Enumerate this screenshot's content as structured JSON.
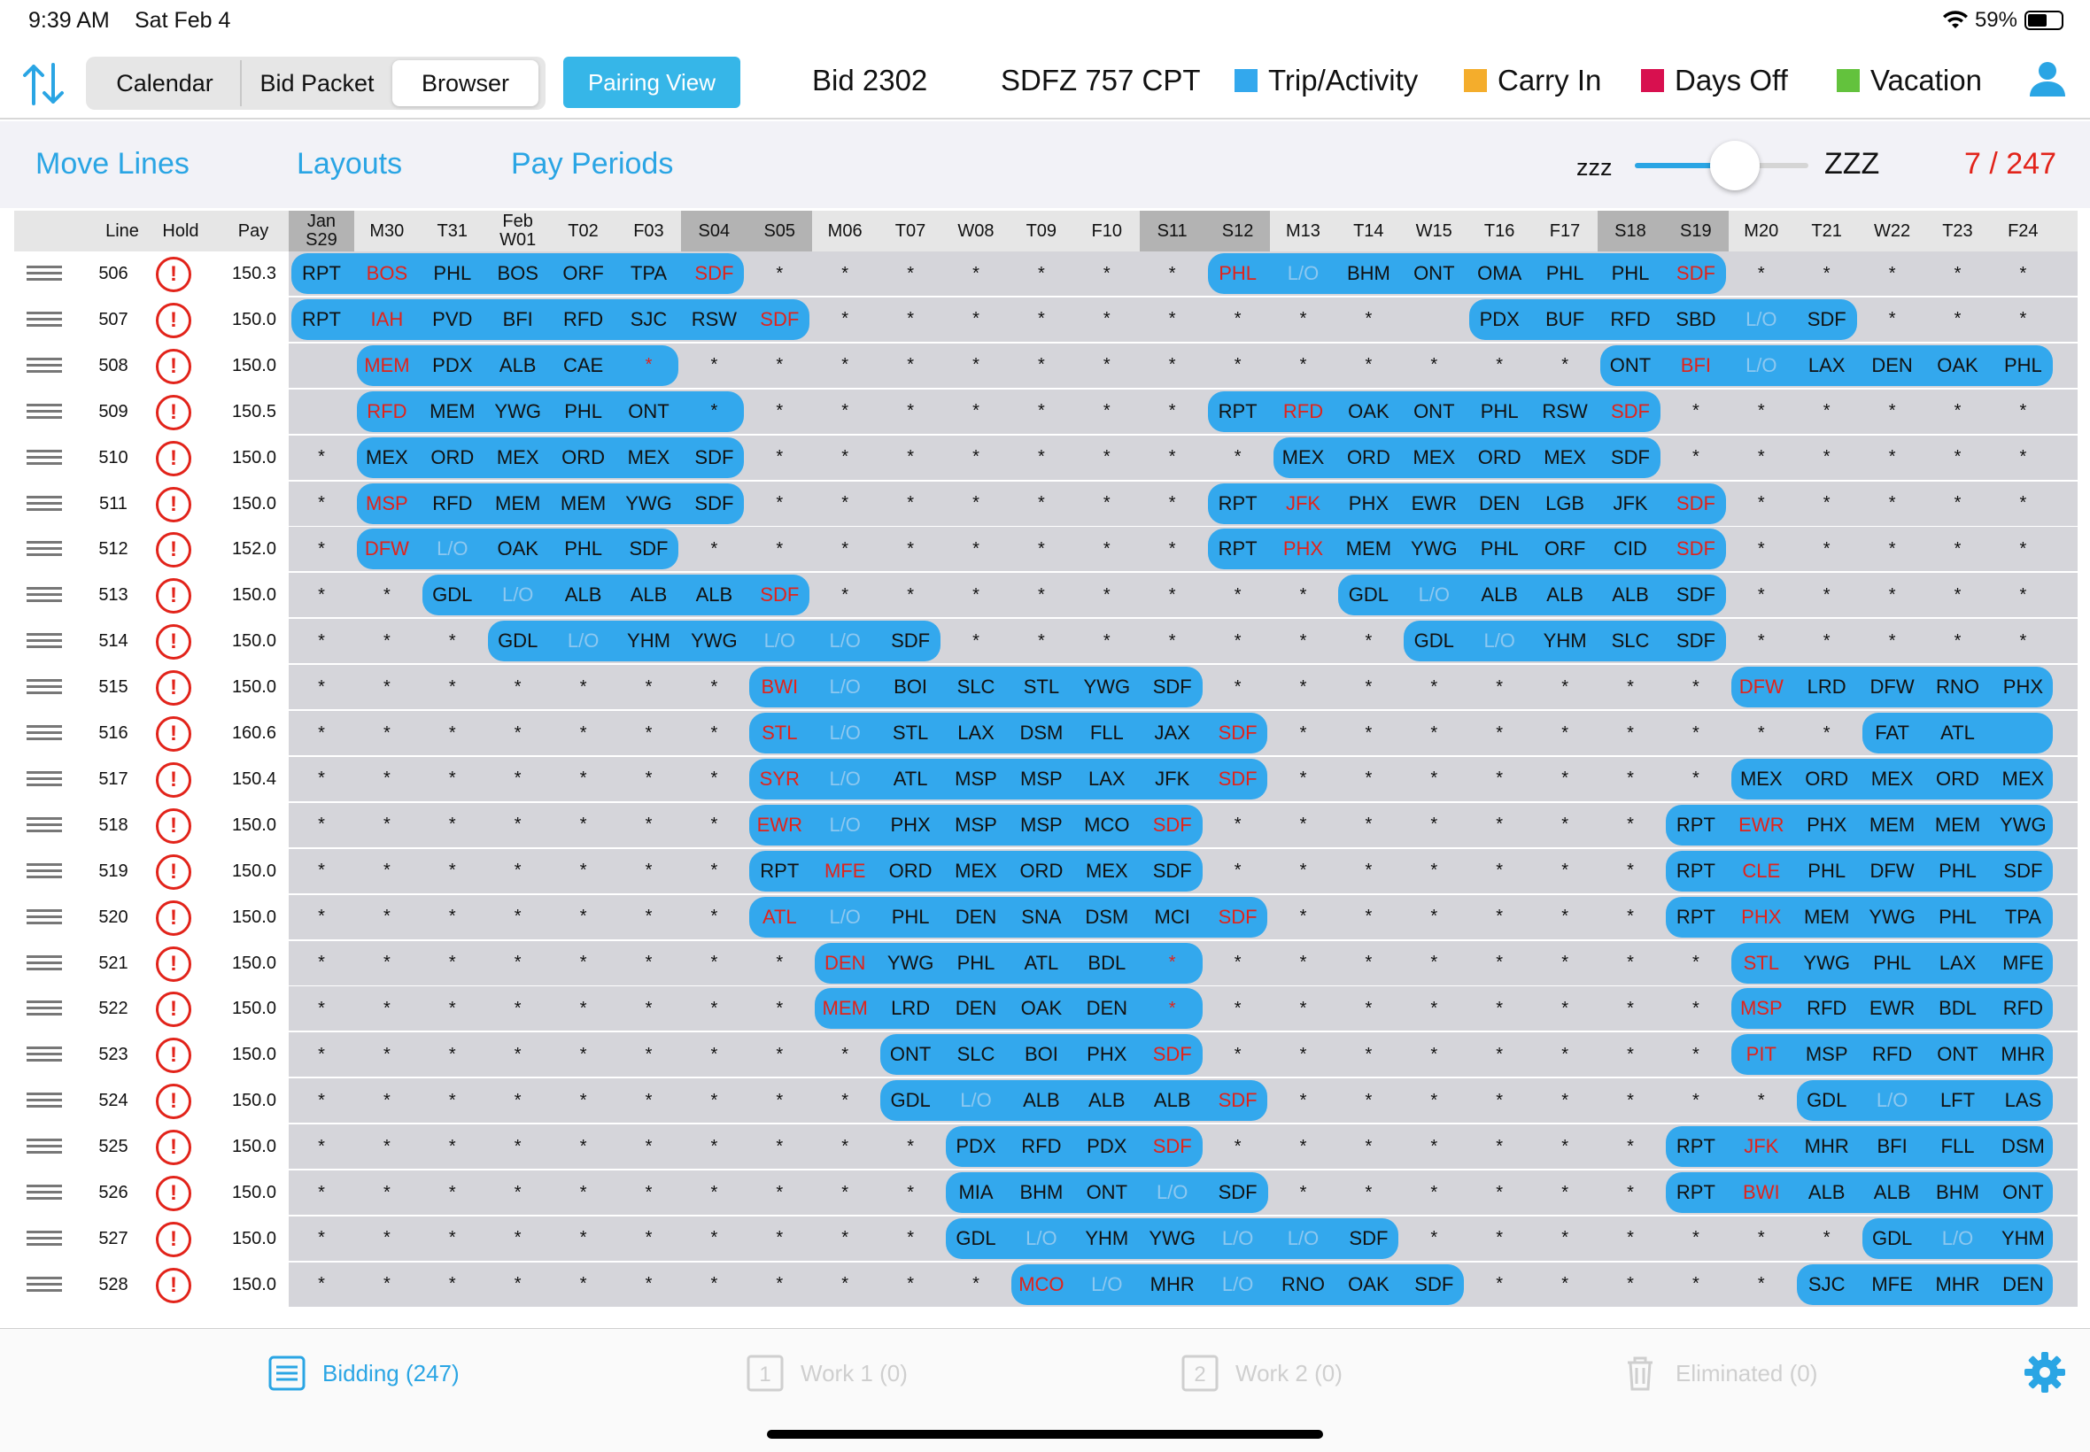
{
  "status_bar": {
    "time": "9:39 AM",
    "date": "Sat Feb 4",
    "battery": "59%",
    "battery_level": 0.59
  },
  "segments": [
    "Calendar",
    "Bid Packet",
    "Browser"
  ],
  "selected_segment": "Browser",
  "pairing_view_label": "Pairing View",
  "bid_label": "Bid 2302",
  "crew_label": "SDFZ 757 CPT",
  "legend": [
    {
      "label": "Trip/Activity",
      "color": "#33a8ed"
    },
    {
      "label": "Carry In",
      "color": "#f4ad2c"
    },
    {
      "label": "Days Off",
      "color": "#d8104f"
    },
    {
      "label": "Vacation",
      "color": "#63c23d"
    }
  ],
  "toolbar": {
    "move_lines": "Move Lines",
    "layouts": "Layouts",
    "pay_periods": "Pay Periods",
    "zzz_small": "zzz",
    "zzz_large": "ZZZ",
    "slider_value": 0.56,
    "count": "7 / 247"
  },
  "columns": {
    "line": "Line",
    "hold": "Hold",
    "pay": "Pay"
  },
  "days": [
    {
      "top": "Jan",
      "bot": "S29",
      "weekend": true
    },
    {
      "top": "",
      "bot": "M30",
      "weekend": false
    },
    {
      "top": "",
      "bot": "T31",
      "weekend": false
    },
    {
      "top": "Feb",
      "bot": "W01",
      "weekend": false
    },
    {
      "top": "",
      "bot": "T02",
      "weekend": false
    },
    {
      "top": "",
      "bot": "F03",
      "weekend": false
    },
    {
      "top": "",
      "bot": "S04",
      "weekend": true
    },
    {
      "top": "",
      "bot": "S05",
      "weekend": true
    },
    {
      "top": "",
      "bot": "M06",
      "weekend": false
    },
    {
      "top": "",
      "bot": "T07",
      "weekend": false
    },
    {
      "top": "",
      "bot": "W08",
      "weekend": false
    },
    {
      "top": "",
      "bot": "T09",
      "weekend": false
    },
    {
      "top": "",
      "bot": "F10",
      "weekend": false
    },
    {
      "top": "",
      "bot": "S11",
      "weekend": true
    },
    {
      "top": "",
      "bot": "S12",
      "weekend": true
    },
    {
      "top": "",
      "bot": "M13",
      "weekend": false
    },
    {
      "top": "",
      "bot": "T14",
      "weekend": false
    },
    {
      "top": "",
      "bot": "W15",
      "weekend": false
    },
    {
      "top": "",
      "bot": "T16",
      "weekend": false
    },
    {
      "top": "",
      "bot": "F17",
      "weekend": false
    },
    {
      "top": "",
      "bot": "S18",
      "weekend": true
    },
    {
      "top": "",
      "bot": "S19",
      "weekend": true
    },
    {
      "top": "",
      "bot": "M20",
      "weekend": false
    },
    {
      "top": "",
      "bot": "T21",
      "weekend": false
    },
    {
      "top": "",
      "bot": "W22",
      "weekend": false
    },
    {
      "top": "",
      "bot": "T23",
      "weekend": false
    },
    {
      "top": "",
      "bot": "F24",
      "weekend": false
    }
  ],
  "lines": [
    {
      "line": "506",
      "pay": "150.3",
      "cells": [
        "RPT",
        "!BOS",
        "PHL",
        "BOS",
        "ORF",
        "TPA",
        "!SDF",
        "*",
        "*",
        "*",
        "*",
        "*",
        "*",
        "*",
        "!PHL",
        "~L/O",
        "BHM",
        "ONT",
        "OMA",
        "PHL",
        "PHL",
        "!SDF",
        "*",
        "*",
        "*",
        "*",
        "*"
      ],
      "trips": [
        [
          0,
          6
        ],
        [
          14,
          21
        ]
      ]
    },
    {
      "line": "507",
      "pay": "150.0",
      "cells": [
        "RPT",
        "!IAH",
        "PVD",
        "BFI",
        "RFD",
        "SJC",
        "RSW",
        "!SDF",
        "*",
        "*",
        "*",
        "*",
        "*",
        "*",
        "*",
        "*",
        "*",
        "",
        "PDX",
        "BUF",
        "RFD",
        "SBD",
        "~L/O",
        "SDF",
        "*",
        "*",
        "*"
      ],
      "trips": [
        [
          0,
          7
        ],
        [
          18,
          23
        ]
      ]
    },
    {
      "line": "508",
      "pay": "150.0",
      "cells": [
        "",
        "!MEM",
        "PDX",
        "ALB",
        "CAE",
        "!*",
        "*",
        "*",
        "*",
        "*",
        "*",
        "*",
        "*",
        "*",
        "*",
        "*",
        "*",
        "*",
        "*",
        "*",
        "ONT",
        "!BFI",
        "~L/O",
        "LAX",
        "DEN",
        "OAK",
        "PHL"
      ],
      "trips": [
        [
          1,
          5
        ],
        [
          20,
          26
        ]
      ]
    },
    {
      "line": "509",
      "pay": "150.5",
      "cells": [
        "",
        "!RFD",
        "MEM",
        "YWG",
        "PHL",
        "ONT",
        "*",
        "*",
        "*",
        "*",
        "*",
        "*",
        "*",
        "*",
        "RPT",
        "!RFD",
        "OAK",
        "ONT",
        "PHL",
        "RSW",
        "!SDF",
        "*",
        "*",
        "*",
        "*",
        "*",
        "*"
      ],
      "trips": [
        [
          1,
          6
        ],
        [
          14,
          20
        ]
      ]
    },
    {
      "line": "510",
      "pay": "150.0",
      "cells": [
        "*",
        "MEX",
        "ORD",
        "MEX",
        "ORD",
        "MEX",
        "SDF",
        "*",
        "*",
        "*",
        "*",
        "*",
        "*",
        "*",
        "*",
        "MEX",
        "ORD",
        "MEX",
        "ORD",
        "MEX",
        "SDF",
        "*",
        "*",
        "*",
        "*",
        "*",
        "*"
      ],
      "trips": [
        [
          1,
          6
        ],
        [
          15,
          20
        ]
      ]
    },
    {
      "line": "511",
      "pay": "150.0",
      "cells": [
        "*",
        "!MSP",
        "RFD",
        "MEM",
        "MEM",
        "YWG",
        "SDF",
        "*",
        "*",
        "*",
        "*",
        "*",
        "*",
        "*",
        "RPT",
        "!JFK",
        "PHX",
        "EWR",
        "DEN",
        "LGB",
        "JFK",
        "!SDF",
        "*",
        "*",
        "*",
        "*",
        "*"
      ],
      "trips": [
        [
          1,
          6
        ],
        [
          14,
          21
        ]
      ]
    },
    {
      "line": "512",
      "pay": "152.0",
      "cells": [
        "*",
        "!DFW",
        "~L/O",
        "OAK",
        "PHL",
        "SDF",
        "*",
        "*",
        "*",
        "*",
        "*",
        "*",
        "*",
        "*",
        "RPT",
        "!PHX",
        "MEM",
        "YWG",
        "PHL",
        "ORF",
        "CID",
        "!SDF",
        "*",
        "*",
        "*",
        "*",
        "*"
      ],
      "trips": [
        [
          1,
          5
        ],
        [
          14,
          21
        ]
      ]
    },
    {
      "line": "513",
      "pay": "150.0",
      "cells": [
        "*",
        "*",
        "GDL",
        "~L/O",
        "ALB",
        "ALB",
        "ALB",
        "!SDF",
        "*",
        "*",
        "*",
        "*",
        "*",
        "*",
        "*",
        "*",
        "GDL",
        "~L/O",
        "ALB",
        "ALB",
        "ALB",
        "SDF",
        "*",
        "*",
        "*",
        "*",
        "*"
      ],
      "trips": [
        [
          2,
          7
        ],
        [
          16,
          21
        ]
      ]
    },
    {
      "line": "514",
      "pay": "150.0",
      "cells": [
        "*",
        "*",
        "*",
        "GDL",
        "~L/O",
        "YHM",
        "YWG",
        "~L/O",
        "~L/O",
        "SDF",
        "*",
        "*",
        "*",
        "*",
        "*",
        "*",
        "*",
        "GDL",
        "~L/O",
        "YHM",
        "SLC",
        "SDF",
        "*",
        "*",
        "*",
        "*",
        "*"
      ],
      "trips": [
        [
          3,
          9
        ],
        [
          17,
          21
        ]
      ]
    },
    {
      "line": "515",
      "pay": "150.0",
      "cells": [
        "*",
        "*",
        "*",
        "*",
        "*",
        "*",
        "*",
        "!BWI",
        "~L/O",
        "BOI",
        "SLC",
        "STL",
        "YWG",
        "SDF",
        "*",
        "*",
        "*",
        "*",
        "*",
        "*",
        "*",
        "*",
        "!DFW",
        "LRD",
        "DFW",
        "RNO",
        "PHX"
      ],
      "trips": [
        [
          7,
          13
        ],
        [
          22,
          26
        ]
      ]
    },
    {
      "line": "516",
      "pay": "160.6",
      "cells": [
        "*",
        "*",
        "*",
        "*",
        "*",
        "*",
        "*",
        "!STL",
        "~L/O",
        "STL",
        "LAX",
        "DSM",
        "FLL",
        "JAX",
        "!SDF",
        "*",
        "*",
        "*",
        "*",
        "*",
        "*",
        "*",
        "*",
        "*",
        "FAT",
        "ATL",
        ""
      ],
      "trips": [
        [
          7,
          14
        ],
        [
          24,
          26
        ]
      ]
    },
    {
      "line": "517",
      "pay": "150.4",
      "cells": [
        "*",
        "*",
        "*",
        "*",
        "*",
        "*",
        "*",
        "!SYR",
        "~L/O",
        "ATL",
        "MSP",
        "MSP",
        "LAX",
        "JFK",
        "!SDF",
        "*",
        "*",
        "*",
        "*",
        "*",
        "*",
        "*",
        "MEX",
        "ORD",
        "MEX",
        "ORD",
        "MEX"
      ],
      "trips": [
        [
          7,
          14
        ],
        [
          22,
          26
        ]
      ]
    },
    {
      "line": "518",
      "pay": "150.0",
      "cells": [
        "*",
        "*",
        "*",
        "*",
        "*",
        "*",
        "*",
        "!EWR",
        "~L/O",
        "PHX",
        "MSP",
        "MSP",
        "MCO",
        "!SDF",
        "*",
        "*",
        "*",
        "*",
        "*",
        "*",
        "*",
        "RPT",
        "!EWR",
        "PHX",
        "MEM",
        "MEM",
        "YWG"
      ],
      "trips": [
        [
          7,
          13
        ],
        [
          21,
          26
        ]
      ]
    },
    {
      "line": "519",
      "pay": "150.0",
      "cells": [
        "*",
        "*",
        "*",
        "*",
        "*",
        "*",
        "*",
        "RPT",
        "!MFE",
        "ORD",
        "MEX",
        "ORD",
        "MEX",
        "SDF",
        "*",
        "*",
        "*",
        "*",
        "*",
        "*",
        "*",
        "RPT",
        "!CLE",
        "PHL",
        "DFW",
        "PHL",
        "SDF"
      ],
      "trips": [
        [
          7,
          13
        ],
        [
          21,
          26
        ]
      ]
    },
    {
      "line": "520",
      "pay": "150.0",
      "cells": [
        "*",
        "*",
        "*",
        "*",
        "*",
        "*",
        "*",
        "!ATL",
        "~L/O",
        "PHL",
        "DEN",
        "SNA",
        "DSM",
        "MCI",
        "!SDF",
        "*",
        "*",
        "*",
        "*",
        "*",
        "*",
        "RPT",
        "!PHX",
        "MEM",
        "YWG",
        "PHL",
        "TPA"
      ],
      "trips": [
        [
          7,
          14
        ],
        [
          21,
          26
        ]
      ]
    },
    {
      "line": "521",
      "pay": "150.0",
      "cells": [
        "*",
        "*",
        "*",
        "*",
        "*",
        "*",
        "*",
        "*",
        "!DEN",
        "YWG",
        "PHL",
        "ATL",
        "BDL",
        "!*",
        "*",
        "*",
        "*",
        "*",
        "*",
        "*",
        "*",
        "*",
        "!STL",
        "YWG",
        "PHL",
        "LAX",
        "MFE"
      ],
      "trips": [
        [
          8,
          13
        ],
        [
          22,
          26
        ]
      ]
    },
    {
      "line": "522",
      "pay": "150.0",
      "cells": [
        "*",
        "*",
        "*",
        "*",
        "*",
        "*",
        "*",
        "*",
        "!MEM",
        "LRD",
        "DEN",
        "OAK",
        "DEN",
        "!*",
        "*",
        "*",
        "*",
        "*",
        "*",
        "*",
        "*",
        "*",
        "!MSP",
        "RFD",
        "EWR",
        "BDL",
        "RFD"
      ],
      "trips": [
        [
          8,
          13
        ],
        [
          22,
          26
        ]
      ]
    },
    {
      "line": "523",
      "pay": "150.0",
      "cells": [
        "*",
        "*",
        "*",
        "*",
        "*",
        "*",
        "*",
        "*",
        "*",
        "ONT",
        "SLC",
        "BOI",
        "PHX",
        "!SDF",
        "*",
        "*",
        "*",
        "*",
        "*",
        "*",
        "*",
        "*",
        "!PIT",
        "MSP",
        "RFD",
        "ONT",
        "MHR"
      ],
      "trips": [
        [
          9,
          13
        ],
        [
          22,
          26
        ]
      ]
    },
    {
      "line": "524",
      "pay": "150.0",
      "cells": [
        "*",
        "*",
        "*",
        "*",
        "*",
        "*",
        "*",
        "*",
        "*",
        "GDL",
        "~L/O",
        "ALB",
        "ALB",
        "ALB",
        "!SDF",
        "*",
        "*",
        "*",
        "*",
        "*",
        "*",
        "*",
        "*",
        "GDL",
        "~L/O",
        "LFT",
        "LAS"
      ],
      "trips": [
        [
          9,
          14
        ],
        [
          23,
          26
        ]
      ]
    },
    {
      "line": "525",
      "pay": "150.0",
      "cells": [
        "*",
        "*",
        "*",
        "*",
        "*",
        "*",
        "*",
        "*",
        "*",
        "*",
        "PDX",
        "RFD",
        "PDX",
        "!SDF",
        "*",
        "*",
        "*",
        "*",
        "*",
        "*",
        "*",
        "RPT",
        "!JFK",
        "MHR",
        "BFI",
        "FLL",
        "DSM"
      ],
      "trips": [
        [
          10,
          13
        ],
        [
          21,
          26
        ]
      ]
    },
    {
      "line": "526",
      "pay": "150.0",
      "cells": [
        "*",
        "*",
        "*",
        "*",
        "*",
        "*",
        "*",
        "*",
        "*",
        "*",
        "MIA",
        "BHM",
        "ONT",
        "~L/O",
        "SDF",
        "*",
        "*",
        "*",
        "*",
        "*",
        "*",
        "RPT",
        "!BWI",
        "ALB",
        "ALB",
        "BHM",
        "ONT"
      ],
      "trips": [
        [
          10,
          14
        ],
        [
          21,
          26
        ]
      ]
    },
    {
      "line": "527",
      "pay": "150.0",
      "cells": [
        "*",
        "*",
        "*",
        "*",
        "*",
        "*",
        "*",
        "*",
        "*",
        "*",
        "GDL",
        "~L/O",
        "YHM",
        "YWG",
        "~L/O",
        "~L/O",
        "SDF",
        "*",
        "*",
        "*",
        "*",
        "*",
        "*",
        "*",
        "GDL",
        "~L/O",
        "YHM"
      ],
      "trips": [
        [
          10,
          16
        ],
        [
          24,
          26
        ]
      ]
    },
    {
      "line": "528",
      "pay": "150.0",
      "cells": [
        "*",
        "*",
        "*",
        "*",
        "*",
        "*",
        "*",
        "*",
        "*",
        "*",
        "*",
        "!MCO",
        "~L/O",
        "MHR",
        "~L/O",
        "RNO",
        "OAK",
        "SDF",
        "*",
        "*",
        "*",
        "*",
        "*",
        "SJC",
        "MFE",
        "MHR",
        "DEN"
      ],
      "trips": [
        [
          11,
          17
        ],
        [
          23,
          26
        ]
      ]
    }
  ],
  "tabs": [
    {
      "label": "Bidding (247)",
      "active": true
    },
    {
      "label": "Work 1 (0)",
      "active": false
    },
    {
      "label": "Work 2 (0)",
      "active": false
    },
    {
      "label": "Eliminated (0)",
      "active": false
    }
  ]
}
